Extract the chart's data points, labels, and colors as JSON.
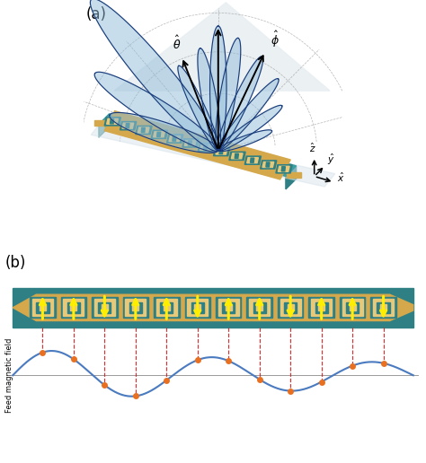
{
  "fig_width": 4.74,
  "fig_height": 5.16,
  "dpi": 100,
  "bg_color": "#ffffff",
  "panel_a_label": "(a)",
  "panel_b_label": "(b)",
  "antenna_teal": "#2e8085",
  "antenna_teal_light": "#3a9ea3",
  "antenna_teal_top": "#4aacb0",
  "antenna_gold": "#d4a84b",
  "antenna_gold_light": "#e8c97a",
  "antenna_shadow": "#1a5558",
  "beam_blue_dark": "#1a3a7a",
  "beam_blue_mid": "#2a5aa0",
  "beam_fill": "#90bcd8",
  "wave_blue": "#4a7abf",
  "arrow_yellow": "#ffee00",
  "dot_orange": "#e87020",
  "dashed_red": "#cc2020",
  "grid_gray": "#999999",
  "n_antenna_elements": 12,
  "ylabel_b": "Feed magnetic field",
  "gnd_plane_color": "#c8d8e0",
  "light_gray_plane": "#d8e4ec"
}
